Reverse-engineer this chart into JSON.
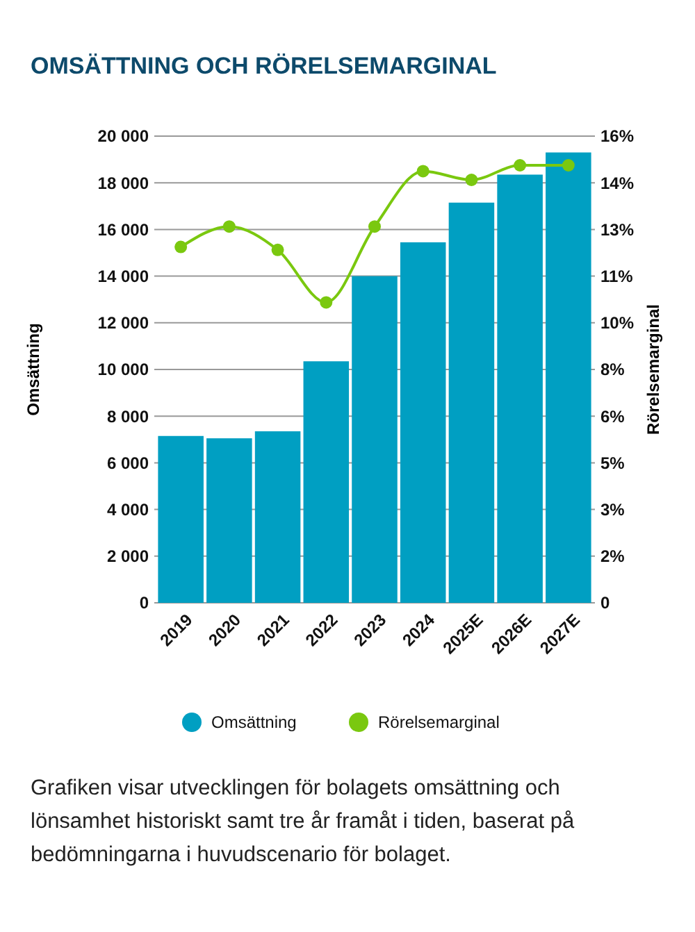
{
  "chart_data": {
    "type": "bar",
    "title": "OMSÄTTNING OCH RÖRELSEMARGINAL",
    "ylabel": "Omsättning",
    "y2label": "Rörelsemarginal",
    "categories": [
      "2019",
      "2020",
      "2021",
      "2022",
      "2023",
      "2024",
      "2025E",
      "2026E",
      "2027E"
    ],
    "series": [
      {
        "name": "Omsättning",
        "color": "#009fc2",
        "values": [
          7150,
          7050,
          7350,
          10350,
          14000,
          15450,
          17150,
          18350,
          19300
        ]
      },
      {
        "name": "Rörelsemarginal",
        "type": "line",
        "axis": "y2",
        "color": "#7ac80f",
        "marker": "circle",
        "values": [
          12.2,
          12.9,
          12.1,
          10.3,
          12.9,
          14.8,
          14.5,
          15.0,
          15.0
        ]
      }
    ],
    "ylim": [
      0,
      20000
    ],
    "yticks": [
      0,
      {
        "value": 2000,
        "label": "2 000"
      },
      {
        "value": 4000,
        "label": "4 000"
      },
      {
        "value": 6000,
        "label": "6 000"
      },
      {
        "value": 8000,
        "label": "8 000"
      },
      {
        "value": 10000,
        "label": "10 000"
      },
      {
        "value": 12000,
        "label": "12 000"
      },
      {
        "value": 14000,
        "label": "14 000"
      },
      {
        "value": 16000,
        "label": "16 000"
      },
      {
        "value": 18000,
        "label": "18 000"
      },
      {
        "value": 20000,
        "label": "20 000"
      }
    ],
    "y2lim": [
      0,
      16
    ],
    "y2ticks": [
      0,
      {
        "value": 1.6,
        "label": "2%"
      },
      {
        "value": 3.2,
        "label": "3%"
      },
      {
        "value": 4.8,
        "label": "5%"
      },
      {
        "value": 6.4,
        "label": "6%"
      },
      {
        "value": 8,
        "label": "8%"
      },
      {
        "value": 9.6,
        "label": "10%"
      },
      {
        "value": 11.2,
        "label": "11%"
      },
      {
        "value": 12.8,
        "label": "13%"
      },
      {
        "value": 14.4,
        "label": "14%"
      },
      {
        "value": 16,
        "label": "16%"
      }
    ],
    "grid": "y",
    "legend": "bottom",
    "annotations": [
      "Grafiken visar utvecklingen för bolagets omsättning och lönsamhet historiskt samt tre år framåt i tiden, baserat på bedömningarna i huvudscenario för bolaget."
    ]
  }
}
